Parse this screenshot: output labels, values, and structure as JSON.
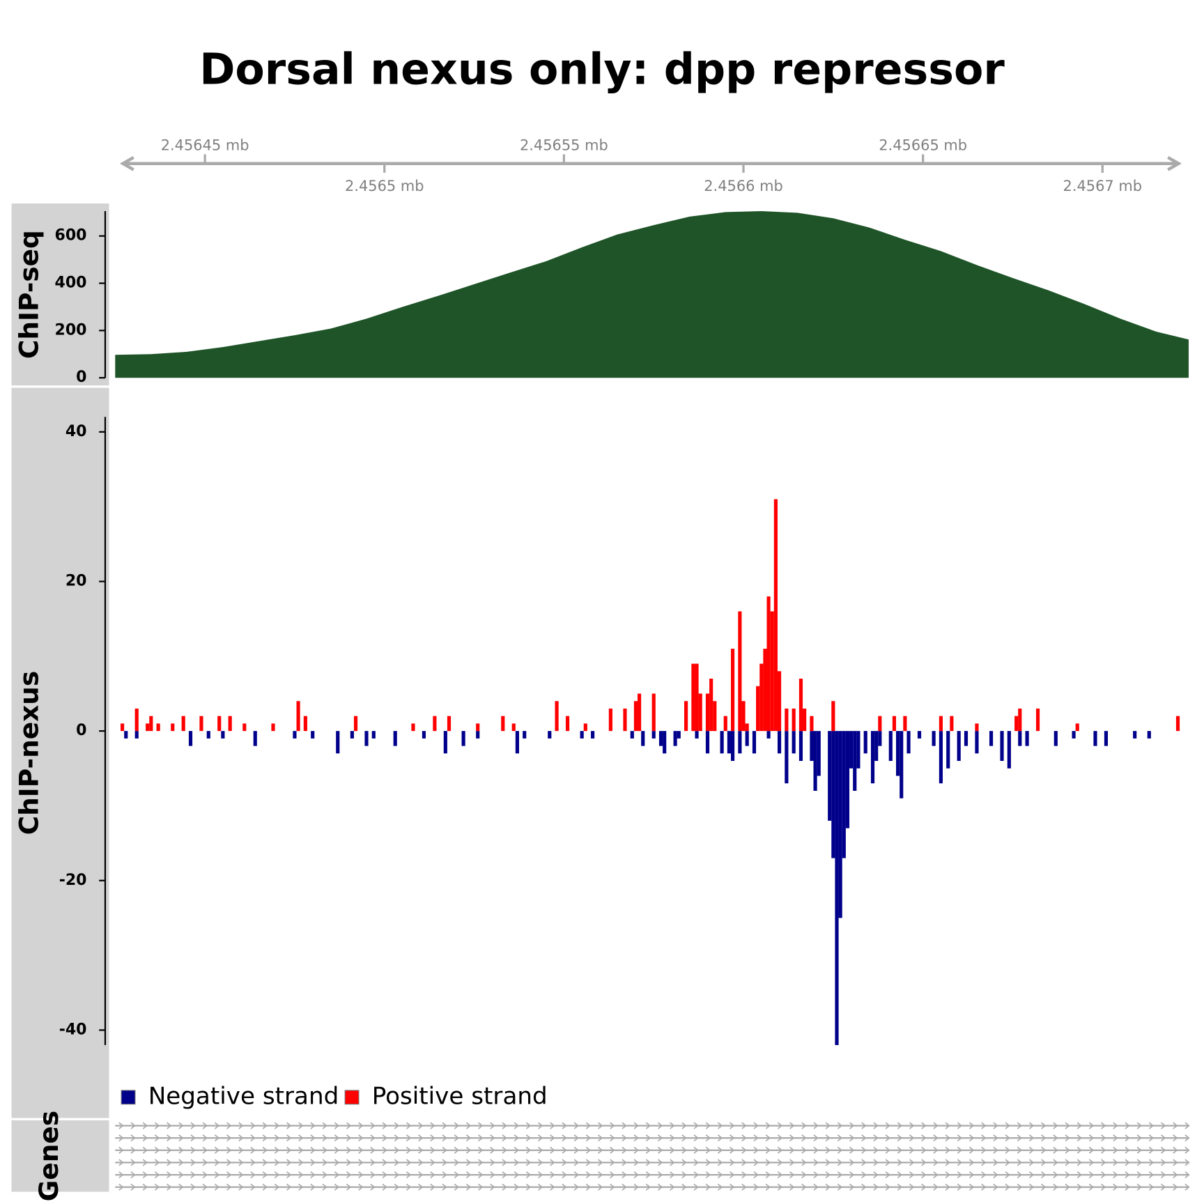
{
  "chart_data": [
    {
      "type": "axis",
      "title": "Dorsal nexus only: dpp repressor",
      "xlim": [
        2456425,
        2456724
      ],
      "xticks": [
        {
          "value": 2456450,
          "label": "2.45645 mb"
        },
        {
          "value": 2456500,
          "label": "2.4565 mb"
        },
        {
          "value": 2456550,
          "label": "2.45655 mb"
        },
        {
          "value": 2456600,
          "label": "2.4566 mb"
        },
        {
          "value": 2456650,
          "label": "2.45665 mb"
        },
        {
          "value": 2456700,
          "label": "2.4567 mb"
        }
      ]
    },
    {
      "type": "area",
      "ylabel": "ChIP-seq",
      "color": "#1e5428",
      "xlim": [
        2456425,
        2456724
      ],
      "ylim": [
        0,
        705
      ],
      "yticks": [
        0,
        200,
        400,
        600
      ],
      "x": [
        2456425,
        2456435,
        2456445,
        2456455,
        2456465,
        2456475,
        2456485,
        2456495,
        2456505,
        2456515,
        2456525,
        2456535,
        2456545,
        2456555,
        2456565,
        2456575,
        2456585,
        2456595,
        2456605,
        2456615,
        2456625,
        2456635,
        2456645,
        2456655,
        2456665,
        2456675,
        2456685,
        2456695,
        2456705,
        2456715,
        2456724
      ],
      "values": [
        97,
        100,
        110,
        130,
        155,
        180,
        208,
        250,
        300,
        347,
        396,
        445,
        493,
        552,
        607,
        646,
        682,
        701,
        705,
        698,
        675,
        636,
        584,
        536,
        477,
        422,
        370,
        312,
        250,
        195,
        162
      ]
    },
    {
      "type": "bar",
      "ylabel": "ChIP-nexus",
      "xlim": [
        2456425,
        2456724
      ],
      "ylim": [
        -42,
        42
      ],
      "yticks": [
        -40,
        -20,
        0,
        20,
        40
      ],
      "legend": "bottom-left",
      "series": [
        {
          "name": "Negative strand",
          "color": "#00008b",
          "x": [
            2456428,
            2456431,
            2456446,
            2456451,
            2456455,
            2456464,
            2456475,
            2456480,
            2456487,
            2456491,
            2456495,
            2456497,
            2456503,
            2456511,
            2456517,
            2456522,
            2456526,
            2456537,
            2456539,
            2456546,
            2456555,
            2456558,
            2456569,
            2456572,
            2456575,
            2456577,
            2456578,
            2456581,
            2456582,
            2456587,
            2456590,
            2456594,
            2456596,
            2456597,
            2456599,
            2456601,
            2456603,
            2456607,
            2456610,
            2456612,
            2456614,
            2456616,
            2456619,
            2456620,
            2456621,
            2456624,
            2456625,
            2456626,
            2456627,
            2456628,
            2456629,
            2456630,
            2456631,
            2456632,
            2456634,
            2456636,
            2456637,
            2456638,
            2456641,
            2456643,
            2456644,
            2456646,
            2456649,
            2456653,
            2456655,
            2456657,
            2456660,
            2456662,
            2456665,
            2456669,
            2456672,
            2456674,
            2456677,
            2456679,
            2456687,
            2456692,
            2456698,
            2456701,
            2456709,
            2456713
          ],
          "values": [
            -1,
            -1,
            -2,
            -1,
            -1,
            -2,
            -1,
            -1,
            -3,
            -1,
            -2,
            -1,
            -2,
            -1,
            -3,
            -2,
            -1,
            -3,
            -1,
            -1,
            -1,
            -1,
            -1,
            -2,
            -1,
            -2,
            -3,
            -2,
            -1,
            -1,
            -3,
            -3,
            -3,
            -4,
            -3,
            -2,
            -3,
            -1,
            -3,
            -7,
            -3,
            -4,
            -4,
            -8,
            -6,
            -12,
            -17,
            -42,
            -25,
            -17,
            -13,
            -5,
            -8,
            -5,
            -3,
            -7,
            -4,
            -2,
            -4,
            -6,
            -9,
            -3,
            -1,
            -2,
            -7,
            -5,
            -4,
            -2,
            -3,
            -2,
            -4,
            -5,
            -2,
            -2,
            -2,
            -1,
            -2,
            -2,
            -1,
            -1
          ]
        },
        {
          "name": "Positive strand",
          "color": "#ff0000",
          "x": [
            2456427,
            2456431,
            2456434,
            2456435,
            2456437,
            2456441,
            2456444,
            2456449,
            2456454,
            2456457,
            2456461,
            2456469,
            2456476,
            2456478,
            2456492,
            2456508,
            2456514,
            2456518,
            2456526,
            2456533,
            2456536,
            2456548,
            2456551,
            2456556,
            2456563,
            2456567,
            2456570,
            2456571,
            2456575,
            2456584,
            2456586,
            2456587,
            2456588,
            2456590,
            2456591,
            2456592,
            2456595,
            2456597,
            2456599,
            2456600,
            2456601,
            2456604,
            2456605,
            2456606,
            2456607,
            2456608,
            2456609,
            2456610,
            2456612,
            2456614,
            2456616,
            2456617,
            2456619,
            2456625,
            2456638,
            2456642,
            2456645,
            2456655,
            2456658,
            2456665,
            2456676,
            2456677,
            2456682,
            2456693,
            2456721
          ],
          "values": [
            1,
            3,
            1,
            2,
            1,
            1,
            2,
            2,
            2,
            2,
            1,
            1,
            4,
            2,
            2,
            1,
            2,
            2,
            1,
            2,
            1,
            4,
            2,
            1,
            3,
            3,
            4,
            5,
            5,
            4,
            9,
            9,
            5,
            5,
            7,
            4,
            2,
            11,
            16,
            4,
            1,
            6,
            9,
            11,
            18,
            16,
            31,
            8,
            3,
            3,
            7,
            3,
            2,
            4,
            2,
            2,
            2,
            2,
            2,
            1,
            2,
            3,
            3,
            1,
            2
          ]
        }
      ]
    },
    {
      "type": "genes",
      "ylabel": "Genes"
    }
  ]
}
